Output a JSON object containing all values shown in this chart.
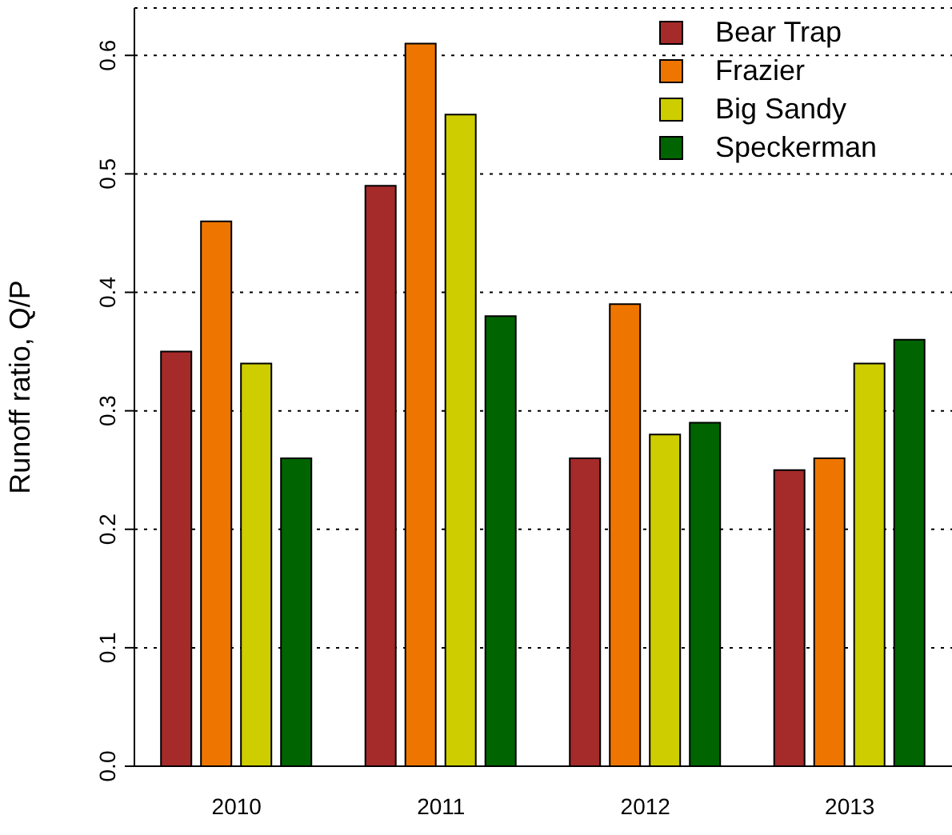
{
  "chart_data": {
    "type": "bar",
    "ylabel": "Runoff ratio, Q/P",
    "categories": [
      "2010",
      "2011",
      "2012",
      "2013"
    ],
    "series": [
      {
        "name": "Bear Trap",
        "color": "#a52a2a",
        "values": [
          0.35,
          0.49,
          0.26,
          0.25
        ]
      },
      {
        "name": "Frazier",
        "color": "#ee7600",
        "values": [
          0.46,
          0.61,
          0.39,
          0.26
        ]
      },
      {
        "name": "Big Sandy",
        "color": "#cdcd00",
        "values": [
          0.34,
          0.55,
          0.28,
          0.34
        ]
      },
      {
        "name": "Speckerman",
        "color": "#006400",
        "values": [
          0.26,
          0.38,
          0.29,
          0.36
        ]
      }
    ],
    "ylim": [
      0,
      0.64
    ],
    "yticks": [
      {
        "value": 0,
        "label": "0.0"
      },
      0.1,
      0.2,
      0.3,
      0.4,
      0.5,
      0.6
    ],
    "grid": "y",
    "legend": "top right"
  }
}
